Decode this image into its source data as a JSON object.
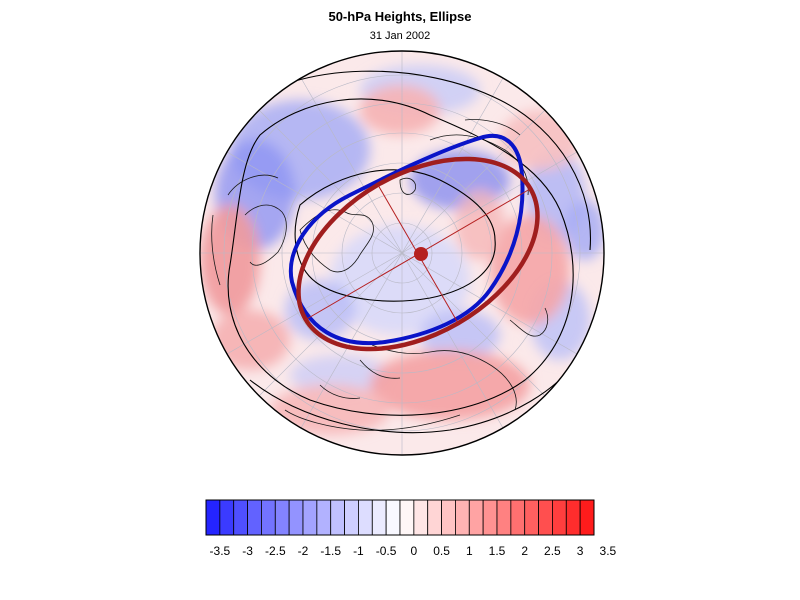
{
  "header": {
    "title": "50-hPa Heights, Ellipse",
    "date": "31 Jan 2002"
  },
  "map": {
    "projection": "north-polar-orthographic",
    "field": "50-hPa height anomaly",
    "blue_contour_color": "#0a14c8",
    "fitted_ellipse_color": "#a01e1e",
    "ellipse_center_marker_color": "#b52020",
    "contour_line_color": "#000000"
  },
  "colorbar": {
    "min_color": "#1414ff",
    "zero_color": "#ffffff",
    "max_color": "#ff1414",
    "tick_labels": [
      "-3.5",
      "-3",
      "-2.5",
      "-2",
      "-1.5",
      "-1",
      "-0.5",
      "0",
      "0.5",
      "1",
      "1.5",
      "2",
      "2.5",
      "3",
      "3.5"
    ]
  }
}
